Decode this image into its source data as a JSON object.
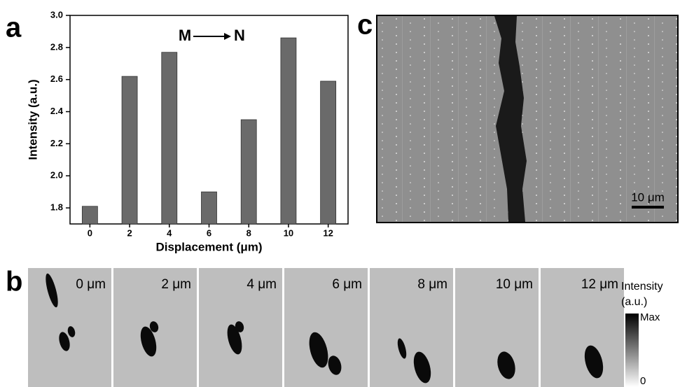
{
  "chart_data": {
    "type": "bar",
    "categories": [
      "0",
      "2",
      "4",
      "6",
      "8",
      "10",
      "12"
    ],
    "values": [
      1.81,
      2.62,
      2.77,
      1.9,
      2.35,
      2.86,
      2.59
    ],
    "color": "#6a6a6a",
    "ylim": [
      1.7,
      3.0
    ],
    "yticks": [
      1.8,
      {
        "value": 2,
        "label": "2.0"
      },
      2.2,
      2.4,
      2.6,
      2.8,
      {
        "value": 3,
        "label": "3.0"
      }
    ],
    "x_label": "Displacement (μm)",
    "y_label": "Intensity (a.u.)",
    "annotation": {
      "start": "M",
      "end": "N"
    }
  },
  "panel_labels": [
    "a",
    "b",
    "c"
  ],
  "scale_bar": "10 μm",
  "frames": [
    "0 μm",
    "2 μm",
    "4 μm",
    "6 μm",
    "8 μm",
    "10 μm",
    "12 μm"
  ],
  "colorbar": {
    "title": "Intensity",
    "unit": "(a.u.)",
    "max": "Max",
    "min": "0"
  }
}
